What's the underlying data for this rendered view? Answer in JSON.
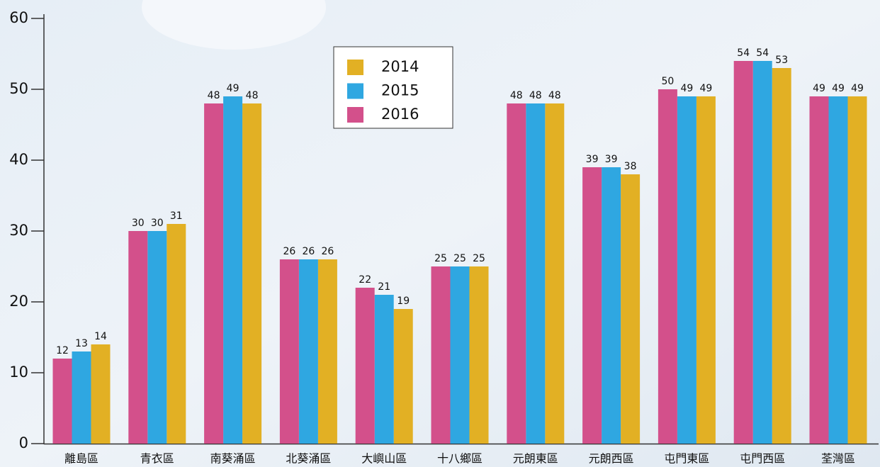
{
  "chart_data": {
    "type": "bar",
    "categories": [
      "離島區",
      "青衣區",
      "南葵涌區",
      "北葵涌區",
      "大嶼山區",
      "十八鄉區",
      "元朗東區",
      "元朗西區",
      "屯門東區",
      "屯門西區",
      "荃灣區"
    ],
    "series": [
      {
        "name": "2014",
        "color": "#e2b024",
        "values": [
          14,
          31,
          48,
          26,
          19,
          25,
          48,
          38,
          49,
          53,
          49
        ]
      },
      {
        "name": "2015",
        "color": "#2fa7e1",
        "values": [
          13,
          30,
          49,
          26,
          21,
          25,
          48,
          39,
          49,
          54,
          49
        ]
      },
      {
        "name": "2016",
        "color": "#d3508b",
        "values": [
          12,
          30,
          48,
          26,
          22,
          25,
          48,
          39,
          50,
          54,
          49
        ]
      }
    ],
    "ylim": [
      0,
      60
    ],
    "yticks": [
      0,
      10,
      20,
      30,
      40,
      50,
      60
    ],
    "legend": "top-center"
  }
}
